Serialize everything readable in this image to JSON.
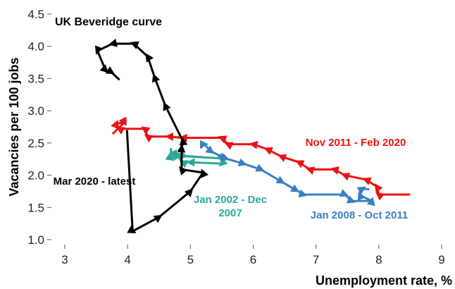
{
  "chart_data": {
    "type": "line",
    "title": "UK Beveridge curve",
    "x_label": "Unemployment rate, %",
    "y_label": "Vacancies per 100 jobs",
    "xlim": [
      3,
      9
    ],
    "ylim": [
      1,
      4.5
    ],
    "xticks": [
      3,
      4,
      5,
      6,
      7,
      8,
      9
    ],
    "yticks": [
      {
        "value": 1,
        "label": "1.0"
      },
      1.5,
      {
        "value": 2,
        "label": "2.0"
      },
      2.5,
      {
        "value": 3,
        "label": "3.0"
      },
      3.5,
      {
        "value": 4,
        "label": "4.0"
      },
      4.5
    ],
    "series": [
      {
        "name": "Jan 2002 - Dec 2007",
        "color": "#2ca89a",
        "x": [
          4.69,
          4.69,
          4.8,
          5.5,
          5.5,
          5.0,
          4.88,
          4.75,
          4.9,
          5.2
        ],
        "values": [
          2.42,
          2.26,
          2.3,
          2.26,
          2.18,
          2.2,
          2.2,
          2.35,
          2.3,
          2.28
        ]
      },
      {
        "name": "Jan 2008 - Oct 2011",
        "color": "#3a7fc1",
        "x": [
          5.16,
          5.22,
          5.33,
          5.56,
          5.84,
          6.12,
          6.45,
          6.68,
          6.8,
          7.46,
          7.57,
          7.89,
          7.7,
          7.74,
          7.85
        ],
        "values": [
          2.42,
          2.48,
          2.37,
          2.26,
          2.18,
          2.09,
          1.9,
          1.77,
          1.7,
          1.7,
          1.6,
          1.6,
          1.69,
          1.79,
          1.78
        ]
      },
      {
        "name": "Nov 2011 - Feb 2020",
        "color": "#ee1111",
        "x": [
          8.5,
          8.0,
          7.97,
          7.8,
          7.46,
          7.29,
          6.9,
          6.73,
          6.45,
          6.23,
          6.0,
          5.6,
          5.5,
          4.88,
          4.66,
          4.32,
          4.27,
          3.87,
          3.82,
          3.95,
          3.76
        ],
        "values": [
          1.7,
          1.7,
          1.82,
          1.93,
          2.0,
          2.09,
          2.09,
          2.2,
          2.29,
          2.4,
          2.48,
          2.48,
          2.58,
          2.58,
          2.6,
          2.6,
          2.72,
          2.72,
          2.8,
          2.82,
          2.64
        ]
      },
      {
        "name": "Mar 2020 - latest",
        "color": "#000000",
        "x": [
          3.99,
          4.08,
          4.5,
          5.0,
          5.2,
          4.86,
          4.86,
          4.88,
          4.6,
          4.43,
          4.32,
          4.1,
          3.76,
          3.52,
          3.65,
          3.74,
          3.87
        ],
        "values": [
          2.7,
          1.13,
          1.35,
          1.75,
          2.04,
          2.09,
          2.42,
          2.53,
          3.08,
          3.52,
          3.84,
          4.04,
          4.04,
          3.93,
          3.63,
          3.6,
          3.48
        ]
      }
    ]
  }
}
